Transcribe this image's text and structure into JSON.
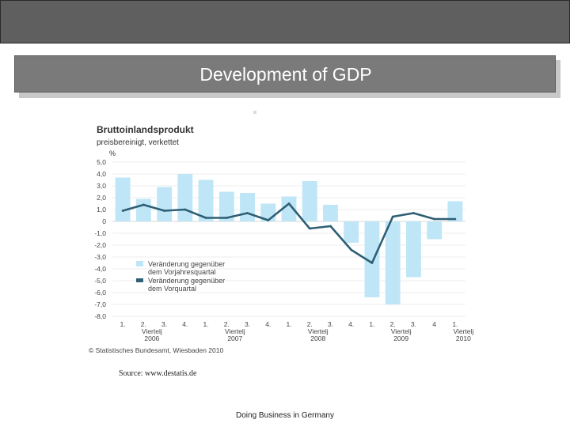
{
  "slide": {
    "title": "Development of GDP",
    "source": "Source:  www.destatis.de",
    "footer": "Doing Business in Germany"
  },
  "colors": {
    "bar": "#bfe6f7",
    "line": "#2e5f74",
    "axis_text": "#444444",
    "grid": "#d9d9d9"
  },
  "chart_data": {
    "type": "bar+line",
    "title": "Bruttoinlandsprodukt",
    "subtitle": "preisbereinigt, verkettet",
    "ylabel": "%",
    "ylim": [
      -8.0,
      5.0
    ],
    "yticks": [
      "5,0",
      "4,0",
      "3,0",
      "2,0",
      "1,0",
      "0",
      "-1,0",
      "-2,0",
      "-3,0",
      "-4,0",
      "-5,0",
      "-6,0",
      "-7,0",
      "-8,0"
    ],
    "ytick_values": [
      5,
      4,
      3,
      2,
      1,
      0,
      -1,
      -2,
      -3,
      -4,
      -5,
      -6,
      -7,
      -8
    ],
    "quarter_labels": [
      "1.",
      "2.",
      "3.",
      "4.",
      "1.",
      "2.",
      "3.",
      "4.",
      "1.",
      "2.",
      "3.",
      "4.",
      "1.",
      "2.",
      "3.",
      "4",
      "1."
    ],
    "year_groups": [
      {
        "label": "Viertelj",
        "year": "2006",
        "index": 1
      },
      {
        "label": "Viertelj",
        "year": "2007",
        "index": 5
      },
      {
        "label": "Viertelj",
        "year": "2008",
        "index": 9
      },
      {
        "label": "Viertelj",
        "year": "2009",
        "index": 13
      },
      {
        "label": "Viertelj",
        "year": "2010",
        "index": 16
      }
    ],
    "series": [
      {
        "name": "Veränderung gegenüber dem Vorjahresquartal",
        "kind": "bar",
        "values": [
          3.7,
          1.9,
          2.9,
          4.0,
          3.5,
          2.5,
          2.4,
          1.5,
          2.1,
          3.4,
          1.4,
          -1.8,
          -6.4,
          -7.0,
          -4.7,
          -1.5,
          1.7
        ]
      },
      {
        "name": "Veränderung gegenüber dem Vorquartal",
        "kind": "line",
        "values": [
          0.9,
          1.4,
          0.9,
          1.0,
          0.3,
          0.3,
          0.7,
          0.1,
          1.5,
          -0.6,
          -0.4,
          -2.4,
          -3.5,
          0.4,
          0.7,
          0.2,
          0.2
        ]
      }
    ],
    "legend": {
      "position": "lower-left",
      "entries": [
        "Veränderung gegenüber",
        "dem Vorjahresquartal",
        "Veränderung gegenüber",
        "dem Vorquartal"
      ]
    },
    "credit": "© Statistisches Bundesamt, Wiesbaden 2010"
  }
}
